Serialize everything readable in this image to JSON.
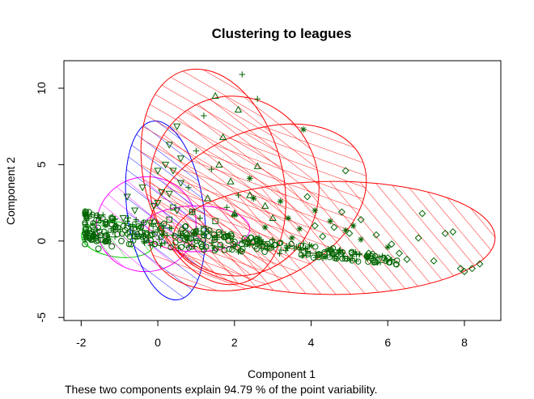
{
  "chart_data": {
    "type": "scatter",
    "title": "Clustering to leagues",
    "xlabel": "Component 1",
    "ylabel": "Component 2",
    "subtitle": "These two components explain 94.79 % of the point variability.",
    "xlim": [
      -2.45,
      8.95
    ],
    "ylim": [
      -5.2,
      11.8
    ],
    "x_ticks": [
      -2,
      0,
      2,
      4,
      6,
      8
    ],
    "y_ticks": [
      -5,
      0,
      5,
      10
    ],
    "point_color": "#006400",
    "clusters": [
      {
        "color": "#00cc00",
        "marker": "circle",
        "center": [
          -1.05,
          0.1
        ],
        "rx": 0.95,
        "ry": 1.15,
        "angle": 8,
        "points": [
          [
            -1.9,
            -0.2
          ],
          [
            -1.7,
            0.3
          ],
          [
            -1.55,
            -0.5
          ],
          [
            -1.4,
            0.6
          ],
          [
            -1.3,
            0.05
          ],
          [
            -1.2,
            -0.35
          ],
          [
            -1.05,
            0.45
          ],
          [
            -0.95,
            0.0
          ],
          [
            -0.85,
            0.7
          ],
          [
            -0.7,
            -0.2
          ],
          [
            -0.6,
            0.3
          ],
          [
            -1.6,
            0.0
          ],
          [
            -1.35,
            0.35
          ]
        ]
      },
      {
        "color": "#ff00ff",
        "marker": "triangle-down",
        "center": [
          -0.3,
          1.1
        ],
        "rx": 1.3,
        "ry": 3.1,
        "angle": -10,
        "points": [
          [
            -0.8,
            2.9
          ],
          [
            -0.6,
            2.0
          ],
          [
            -0.4,
            3.5
          ],
          [
            -0.2,
            1.2
          ],
          [
            0.0,
            2.5
          ],
          [
            0.1,
            0.5
          ],
          [
            -0.5,
            0.8
          ],
          [
            0.3,
            3.1
          ],
          [
            -0.9,
            1.5
          ],
          [
            0.0,
            4.6
          ]
        ]
      },
      {
        "color": "#0000ff",
        "marker": "triangle-down",
        "center": [
          0.2,
          2.0
        ],
        "rx": 1.0,
        "ry": 5.9,
        "angle": -8,
        "points": [
          [
            0.5,
            7.5
          ],
          [
            0.3,
            6.3
          ],
          [
            0.6,
            5.4
          ],
          [
            0.2,
            5.0
          ],
          [
            0.4,
            4.6
          ],
          [
            0.1,
            3.2
          ],
          [
            0.6,
            3.8
          ],
          [
            -0.1,
            2.3
          ],
          [
            0.5,
            2.0
          ],
          [
            0.0,
            1.0
          ]
        ]
      },
      {
        "color": "#ff00ff",
        "marker": "square",
        "center": [
          1.0,
          0.8
        ],
        "rx": 1.4,
        "ry": 1.5,
        "angle": 0,
        "points": [
          [
            0.3,
            1.4
          ],
          [
            0.6,
            0.5
          ],
          [
            0.9,
            1.9
          ],
          [
            1.2,
            0.8
          ],
          [
            1.5,
            1.3
          ],
          [
            0.8,
            0.2
          ],
          [
            1.6,
            0.4
          ],
          [
            0.4,
            2.2
          ]
        ]
      },
      {
        "color": "#ff0000",
        "marker": "plus",
        "center": [
          1.45,
          4.2
        ],
        "rx": 1.8,
        "ry": 7.2,
        "angle": -15,
        "points": [
          [
            2.2,
            10.9
          ],
          [
            1.2,
            8.2
          ],
          [
            2.6,
            9.3
          ],
          [
            1.0,
            5.9
          ],
          [
            1.4,
            4.7
          ],
          [
            0.8,
            3.5
          ],
          [
            2.1,
            3.0
          ],
          [
            1.8,
            2.2
          ],
          [
            1.1,
            1.5
          ],
          [
            0.9,
            1.9
          ]
        ]
      },
      {
        "color": "#ff0000",
        "marker": "triangle",
        "center": [
          2.0,
          3.6
        ],
        "rx": 2.2,
        "ry": 5.9,
        "angle": -12,
        "points": [
          [
            1.5,
            9.5
          ],
          [
            2.1,
            8.6
          ],
          [
            1.7,
            6.8
          ],
          [
            1.6,
            5.0
          ],
          [
            2.6,
            4.9
          ],
          [
            1.9,
            3.9
          ],
          [
            2.4,
            3.0
          ],
          [
            2.8,
            2.3
          ],
          [
            1.3,
            2.8
          ],
          [
            2.0,
            1.8
          ],
          [
            3.0,
            1.5
          ]
        ]
      },
      {
        "color": "#ff0000",
        "marker": "asterisk",
        "center": [
          2.6,
          2.2
        ],
        "rx": 3.0,
        "ry": 4.9,
        "angle": -25,
        "points": [
          [
            3.8,
            7.3
          ],
          [
            2.4,
            4.1
          ],
          [
            3.2,
            2.6
          ],
          [
            2.0,
            1.7
          ],
          [
            3.7,
            0.8
          ],
          [
            4.5,
            1.3
          ],
          [
            4.9,
            0.7
          ],
          [
            5.3,
            0.1
          ],
          [
            6.0,
            -0.4
          ],
          [
            3.5,
            0.2
          ],
          [
            2.8,
            0.9
          ],
          [
            4.1,
            2.0
          ],
          [
            3.4,
            1.5
          ],
          [
            5.1,
            1.0
          ],
          [
            2.5,
            2.8
          ]
        ]
      },
      {
        "color": "#ff0000",
        "marker": "diamond",
        "center": [
          4.6,
          0.2
        ],
        "rx": 4.2,
        "ry": 3.7,
        "angle": 0,
        "points": [
          [
            8.4,
            -1.5
          ],
          [
            8.2,
            -1.8
          ],
          [
            8.0,
            -2.0
          ],
          [
            7.9,
            -1.8
          ],
          [
            7.5,
            0.5
          ],
          [
            7.7,
            0.6
          ],
          [
            6.9,
            1.8
          ],
          [
            6.8,
            0.2
          ],
          [
            6.5,
            -1.2
          ],
          [
            6.3,
            -0.8
          ],
          [
            6.1,
            -0.2
          ],
          [
            6.0,
            -1.1
          ],
          [
            5.7,
            0.4
          ],
          [
            5.5,
            -0.8
          ],
          [
            5.3,
            1.4
          ],
          [
            5.0,
            0.5
          ],
          [
            4.8,
            1.9
          ],
          [
            4.6,
            0.9
          ],
          [
            4.3,
            0.3
          ],
          [
            4.1,
            1.0
          ],
          [
            4.9,
            4.6
          ],
          [
            3.9,
            2.9
          ],
          [
            7.2,
            -1.3
          ]
        ]
      }
    ]
  }
}
